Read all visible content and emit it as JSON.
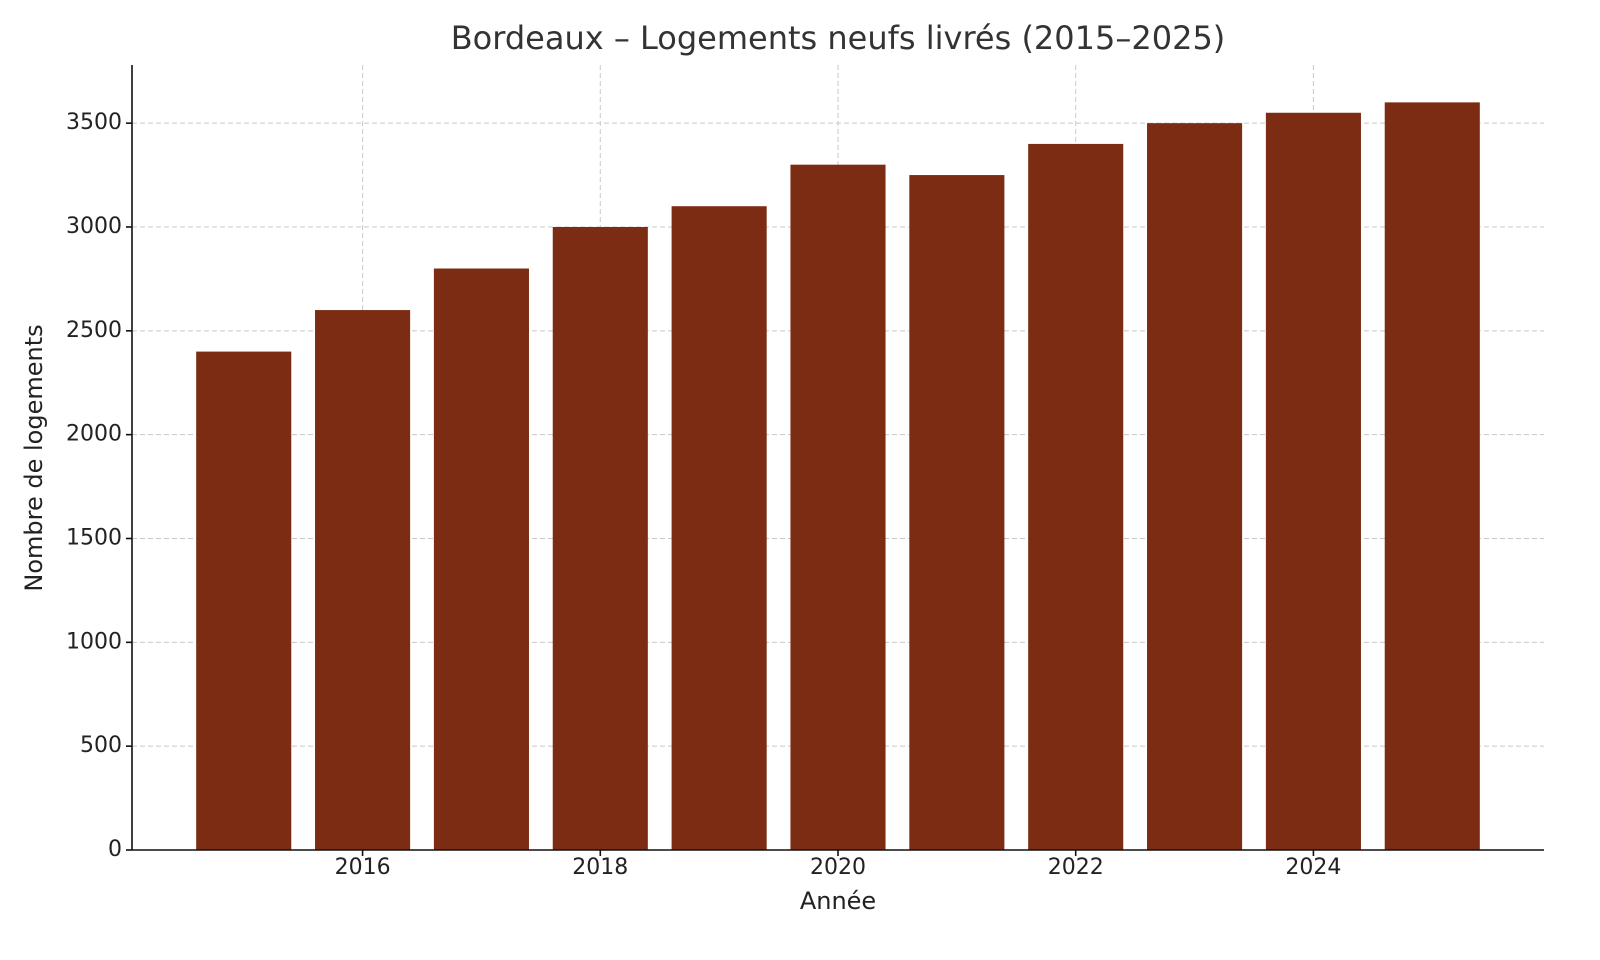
{
  "chart_data": {
    "type": "bar",
    "title": "Bordeaux – Logements neufs livrés (2015–2025)",
    "x_label": "Année",
    "y_label": "Nombre de logements",
    "x": [
      2015,
      2016,
      2017,
      2018,
      2019,
      2020,
      2021,
      2022,
      2023,
      2024,
      2025
    ],
    "values": [
      2400,
      2600,
      2800,
      3000,
      3100,
      3300,
      3250,
      3400,
      3500,
      3550,
      3600
    ],
    "color": "#7b2c13",
    "xlim": [
      2014.06,
      2025.94
    ],
    "xticks": [
      2016,
      2018,
      2020,
      2022,
      2024
    ],
    "ylim": [
      0,
      3780
    ],
    "yticks": [
      0,
      500,
      1000,
      1500,
      2000,
      2500,
      3000,
      3500
    ],
    "grid": true
  }
}
